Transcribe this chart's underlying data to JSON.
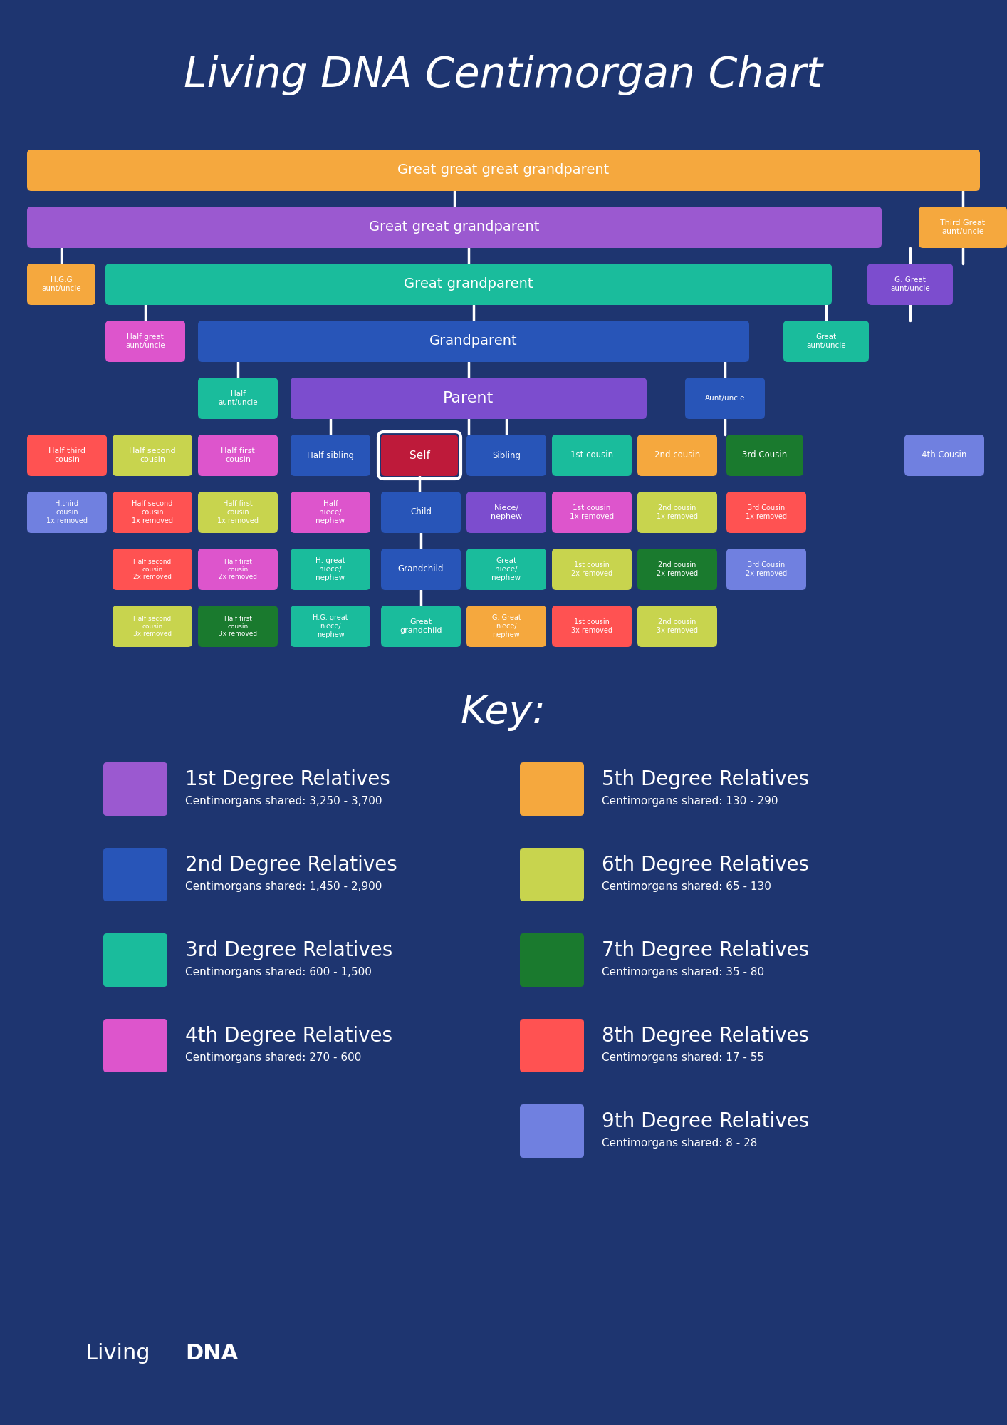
{
  "title": "Living DNA Centimorgan Chart",
  "bg_color": "#1e3570",
  "colors": {
    "orange": "#f5a83e",
    "purple": "#9b59d0",
    "teal": "#1abc9c",
    "blue": "#2855b8",
    "violet": "#7c4dce",
    "pink": "#dd55cc",
    "dark_red": "#be1a3a",
    "dark_green": "#1a7a2e",
    "yellow_green": "#c8d44e",
    "coral": "#ff5252",
    "periwinkle": "#7080e0",
    "lavender": "#c39bd3",
    "orange2": "#f5a83e"
  },
  "key_items": [
    {
      "label": "1st Degree Relatives",
      "sub": "Centimorgans shared: 3,250 - 3,700",
      "color": "#9b59d0"
    },
    {
      "label": "2nd Degree Relatives",
      "sub": "Centimorgans shared: 1,450 - 2,900",
      "color": "#2855b8"
    },
    {
      "label": "3rd Degree Relatives",
      "sub": "Centimorgans shared: 600 - 1,500",
      "color": "#1abc9c"
    },
    {
      "label": "4th Degree Relatives",
      "sub": "Centimorgans shared: 270 - 600",
      "color": "#dd55cc"
    },
    {
      "label": "5th Degree Relatives",
      "sub": "Centimorgans shared: 130 - 290",
      "color": "#f5a83e"
    },
    {
      "label": "6th Degree Relatives",
      "sub": "Centimorgans shared: 65 - 130",
      "color": "#c8d44e"
    },
    {
      "label": "7th Degree Relatives",
      "sub": "Centimorgans shared: 35 - 80",
      "color": "#1a7a2e"
    },
    {
      "label": "8th Degree Relatives",
      "sub": "Centimorgans shared: 17 - 55",
      "color": "#ff5252"
    },
    {
      "label": "9th Degree Relatives",
      "sub": "Centimorgans shared: 8 - 28",
      "color": "#7080e0"
    }
  ]
}
